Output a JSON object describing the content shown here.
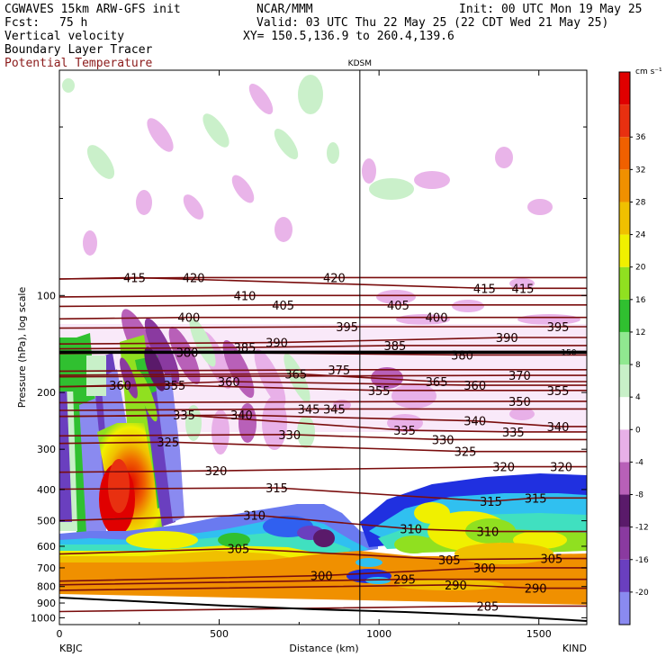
{
  "header": {
    "model": "CGWAVES 15km ARW-GFS init",
    "org": "NCAR/MMM",
    "init": "Init: 00 UTC Mon 19 May 25",
    "fcst_label": "Fcst:",
    "fcst_value": "75 h",
    "valid": "Valid: 03 UTC Thu 22 May 25 (22 CDT Wed 21 May 25)",
    "field1": "Vertical velocity",
    "field2": "Boundary Layer Tracer",
    "field3": "Potential Temperature",
    "xy": "XY= 150.5,136.9 to 260.4,139.6"
  },
  "colors": {
    "theta_contour": "#7a0d0d",
    "tracer_line": "#000000",
    "accent_title": "#8b1a1a"
  },
  "chart_data": {
    "type": "heatmap",
    "title": "",
    "station_marker": "KDSM",
    "station_marker_km": 940,
    "xlabel": "Distance (km)",
    "ylabel": "Pressure (hPa), log scale",
    "x_ticks": [
      "0",
      "500",
      "1000",
      "1500"
    ],
    "x_tick_values": [
      0,
      500,
      1000,
      1500
    ],
    "xlim": [
      0,
      1650
    ],
    "x_left_label": "KBJC",
    "x_right_label": "KIND",
    "y_scale": "log",
    "y_ticks": [
      "100",
      "200",
      "300",
      "400",
      "500",
      "600",
      "700",
      "800",
      "900",
      "1000"
    ],
    "y_tick_values": [
      100,
      200,
      300,
      400,
      500,
      600,
      700,
      800,
      900,
      1000
    ],
    "ylim": [
      1050,
      20
    ],
    "tracer_level_label": "150",
    "tracer_level_hpa": 150,
    "colorbar": {
      "unit": "cm s⁻¹",
      "levels": [
        -20,
        -16,
        -12,
        -8,
        -4,
        0,
        4,
        8,
        12,
        16,
        20,
        24,
        28,
        32,
        36
      ],
      "labels": [
        "-20",
        "-16",
        "-12",
        "-8",
        "-4",
        "0",
        "4",
        "8",
        "12",
        "16",
        "20",
        "24",
        "28",
        "32",
        "36"
      ],
      "colors": [
        "#8a8af0",
        "#6a3fbf",
        "#8a3aa0",
        "#5a1a6a",
        "#b860b8",
        "#e8b0e8",
        "#ffffff",
        "#c8f0c8",
        "#90e890",
        "#30c030",
        "#90e020",
        "#f0f000",
        "#f0c000",
        "#f09000",
        "#f06000",
        "#e83010",
        "#e00000"
      ]
    },
    "theta_contours": [
      {
        "label": "415",
        "km": 235,
        "hpa": 88
      },
      {
        "label": "420",
        "km": 420,
        "hpa": 88
      },
      {
        "label": "420",
        "km": 860,
        "hpa": 88
      },
      {
        "label": "415",
        "km": 1330,
        "hpa": 95
      },
      {
        "label": "415",
        "km": 1450,
        "hpa": 95
      },
      {
        "label": "410",
        "km": 580,
        "hpa": 100
      },
      {
        "label": "405",
        "km": 700,
        "hpa": 107
      },
      {
        "label": "405",
        "km": 1060,
        "hpa": 107
      },
      {
        "label": "400",
        "km": 405,
        "hpa": 117
      },
      {
        "label": "400",
        "km": 1180,
        "hpa": 117
      },
      {
        "label": "395",
        "km": 900,
        "hpa": 125
      },
      {
        "label": "395",
        "km": 1560,
        "hpa": 125
      },
      {
        "label": "390",
        "km": 680,
        "hpa": 140
      },
      {
        "label": "390",
        "km": 1400,
        "hpa": 135
      },
      {
        "label": "385",
        "km": 580,
        "hpa": 145
      },
      {
        "label": "385",
        "km": 1050,
        "hpa": 143
      },
      {
        "label": "380",
        "km": 400,
        "hpa": 150
      },
      {
        "label": "380",
        "km": 1260,
        "hpa": 153
      },
      {
        "label": "375",
        "km": 875,
        "hpa": 170
      },
      {
        "label": "370",
        "km": 1440,
        "hpa": 177
      },
      {
        "label": "365",
        "km": 740,
        "hpa": 175
      },
      {
        "label": "365",
        "km": 1180,
        "hpa": 185
      },
      {
        "label": "360",
        "km": 190,
        "hpa": 190
      },
      {
        "label": "360",
        "km": 530,
        "hpa": 185
      },
      {
        "label": "360",
        "km": 1300,
        "hpa": 190
      },
      {
        "label": "355",
        "km": 360,
        "hpa": 190
      },
      {
        "label": "355",
        "km": 1000,
        "hpa": 197
      },
      {
        "label": "355",
        "km": 1560,
        "hpa": 197
      },
      {
        "label": "350",
        "km": 1440,
        "hpa": 213
      },
      {
        "label": "345",
        "km": 780,
        "hpa": 225
      },
      {
        "label": "345",
        "km": 860,
        "hpa": 225
      },
      {
        "label": "340",
        "km": 570,
        "hpa": 235
      },
      {
        "label": "340",
        "km": 1300,
        "hpa": 245
      },
      {
        "label": "340",
        "km": 1560,
        "hpa": 255
      },
      {
        "label": "335",
        "km": 390,
        "hpa": 235
      },
      {
        "label": "335",
        "km": 1080,
        "hpa": 262
      },
      {
        "label": "335",
        "km": 1420,
        "hpa": 265
      },
      {
        "label": "330",
        "km": 720,
        "hpa": 270
      },
      {
        "label": "330",
        "km": 1200,
        "hpa": 280
      },
      {
        "label": "325",
        "km": 340,
        "hpa": 285
      },
      {
        "label": "325",
        "km": 1270,
        "hpa": 305
      },
      {
        "label": "320",
        "km": 490,
        "hpa": 350
      },
      {
        "label": "320",
        "km": 1390,
        "hpa": 340
      },
      {
        "label": "320",
        "km": 1570,
        "hpa": 340
      },
      {
        "label": "315",
        "km": 680,
        "hpa": 395
      },
      {
        "label": "315",
        "km": 1350,
        "hpa": 435
      },
      {
        "label": "315",
        "km": 1490,
        "hpa": 425
      },
      {
        "label": "310",
        "km": 610,
        "hpa": 480
      },
      {
        "label": "310",
        "km": 1100,
        "hpa": 530
      },
      {
        "label": "310",
        "km": 1340,
        "hpa": 540
      },
      {
        "label": "305",
        "km": 560,
        "hpa": 610
      },
      {
        "label": "305",
        "km": 1220,
        "hpa": 660
      },
      {
        "label": "305",
        "km": 1540,
        "hpa": 655
      },
      {
        "label": "300",
        "km": 820,
        "hpa": 740
      },
      {
        "label": "300",
        "km": 1330,
        "hpa": 700
      },
      {
        "label": "295",
        "km": 1080,
        "hpa": 760
      },
      {
        "label": "290",
        "km": 1240,
        "hpa": 790
      },
      {
        "label": "290",
        "km": 1490,
        "hpa": 810
      },
      {
        "label": "285",
        "km": 1340,
        "hpa": 920
      }
    ]
  }
}
